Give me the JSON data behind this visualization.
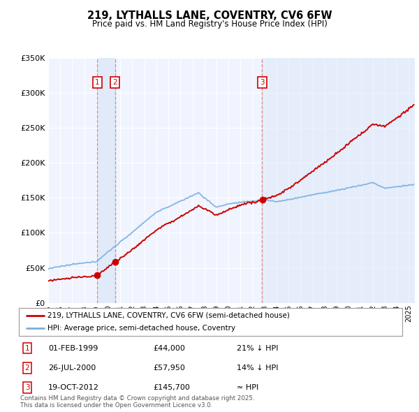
{
  "title": "219, LYTHALLS LANE, COVENTRY, CV6 6FW",
  "subtitle": "Price paid vs. HM Land Registry's House Price Index (HPI)",
  "background_color": "#ffffff",
  "plot_bg_color": "#f0f4ff",
  "ylim": [
    0,
    350000
  ],
  "yticks": [
    0,
    50000,
    100000,
    150000,
    200000,
    250000,
    300000,
    350000
  ],
  "ytick_labels": [
    "£0",
    "£50K",
    "£100K",
    "£150K",
    "£200K",
    "£250K",
    "£300K",
    "£350K"
  ],
  "xlim_start": 1995.0,
  "xlim_end": 2025.5,
  "transactions": [
    {
      "num": 1,
      "year": 1999.083,
      "price": 44000,
      "date_str": "01-FEB-1999",
      "price_str": "£44,000",
      "hpi_str": "21% ↓ HPI"
    },
    {
      "num": 2,
      "year": 2000.556,
      "price": 57950,
      "date_str": "26-JUL-2000",
      "price_str": "£57,950",
      "hpi_str": "14% ↓ HPI"
    },
    {
      "num": 3,
      "year": 2012.792,
      "price": 145700,
      "date_str": "19-OCT-2012",
      "price_str": "£145,700",
      "hpi_str": "≈ HPI"
    }
  ],
  "legend_label_red": "219, LYTHALLS LANE, COVENTRY, CV6 6FW (semi-detached house)",
  "legend_label_blue": "HPI: Average price, semi-detached house, Coventry",
  "footnote": "Contains HM Land Registry data © Crown copyright and database right 2025.\nThis data is licensed under the Open Government Licence v3.0.",
  "red_color": "#cc0000",
  "blue_color": "#7aafe0",
  "vline_color": "#dd8888",
  "shade_color": "#dce8f8"
}
